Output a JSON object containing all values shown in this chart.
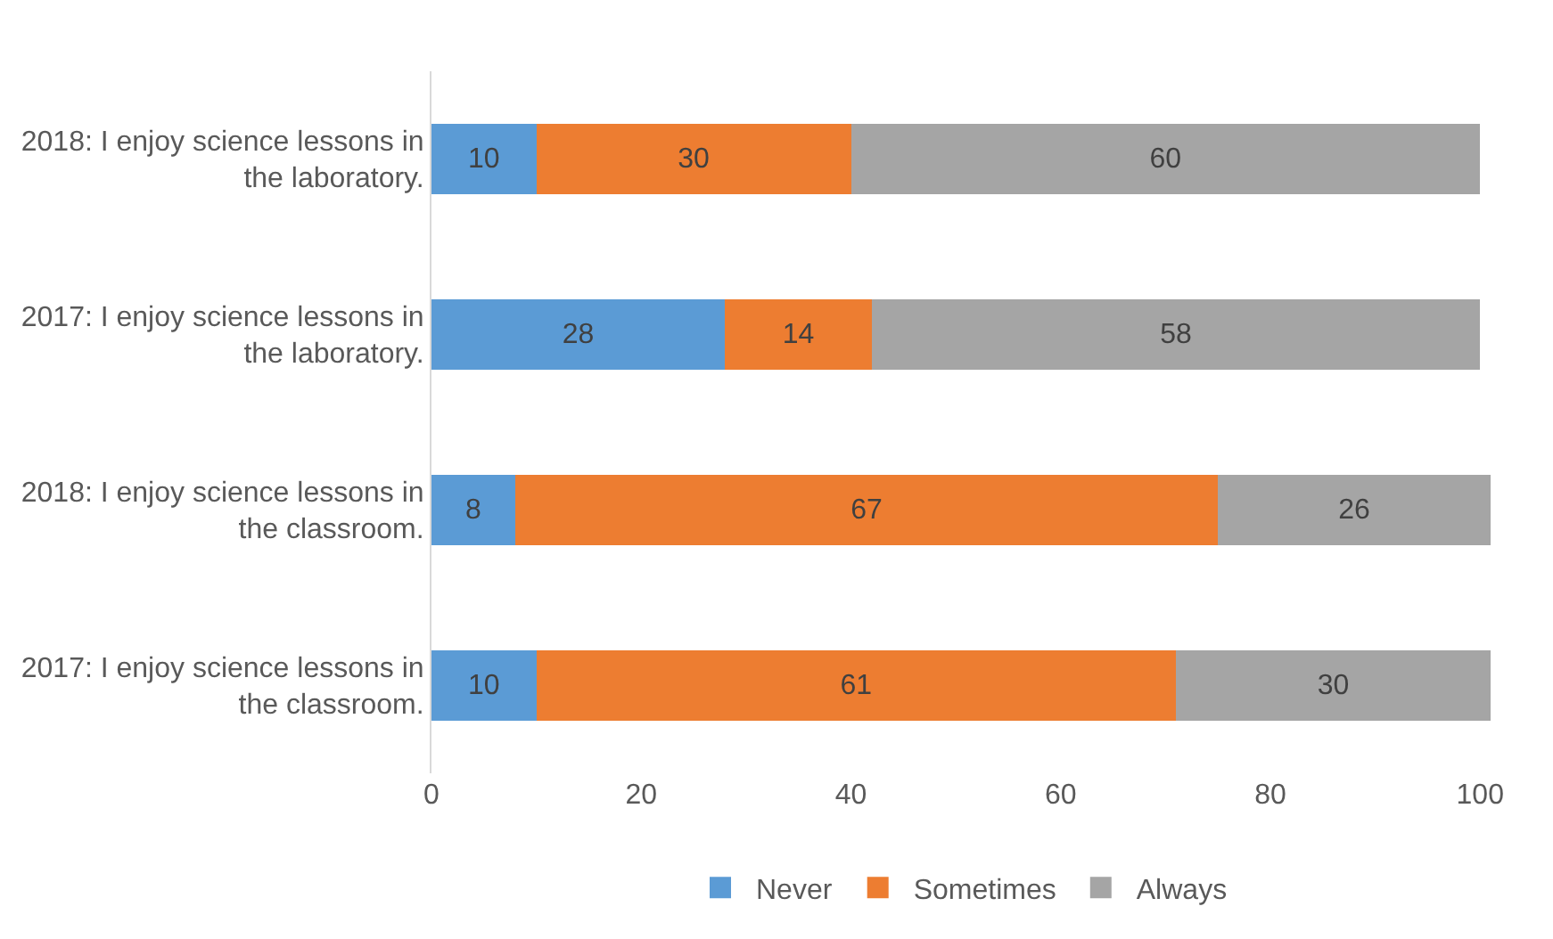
{
  "chart_data": {
    "type": "bar",
    "orientation": "horizontal",
    "stacked": true,
    "data_labels": true,
    "categories": [
      "2018: I enjoy science lessons in the laboratory.",
      "2017: I enjoy science lessons in the laboratory.",
      "2018: I enjoy science lessons in the classroom.",
      "2017: I enjoy science lessons in the classroom."
    ],
    "series": [
      {
        "name": "Never",
        "color": "#5b9bd5",
        "values": [
          10,
          28,
          8,
          10
        ]
      },
      {
        "name": "Sometimes",
        "color": "#ed7d31",
        "values": [
          30,
          14,
          67,
          61
        ]
      },
      {
        "name": "Always",
        "color": "#a5a5a5",
        "values": [
          60,
          58,
          26,
          30
        ]
      }
    ],
    "xlim": [
      0,
      101
    ],
    "xticks": [
      0,
      20,
      40,
      60,
      80,
      100
    ],
    "grid": false,
    "legend": "bottom"
  }
}
